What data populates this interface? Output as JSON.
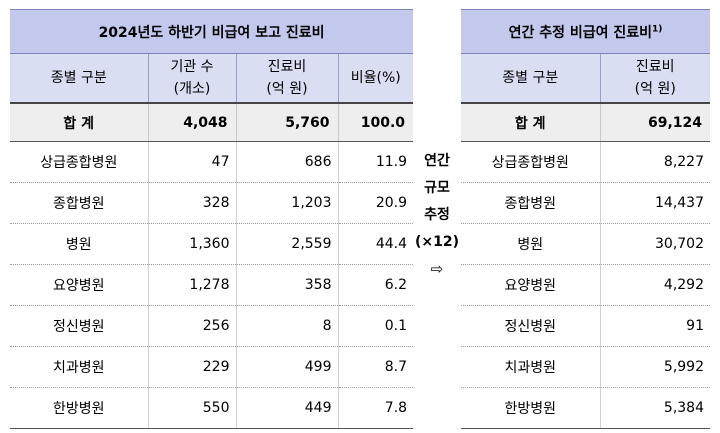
{
  "left_table": {
    "title": "2024년도 하반기 비급여 보고 진료비",
    "headers": {
      "category": "종별 구분",
      "institutions_line1": "기관 수",
      "institutions_line2": "(개소)",
      "cost_line1": "진료비",
      "cost_line2": "(억 원)",
      "ratio": "비율(%)"
    },
    "total": {
      "label": "합 계",
      "institutions": "4,048",
      "cost": "5,760",
      "ratio": "100.0"
    },
    "rows": [
      {
        "label": "상급종합병원",
        "institutions": "47",
        "cost": "686",
        "ratio": "11.9"
      },
      {
        "label": "종합병원",
        "institutions": "328",
        "cost": "1,203",
        "ratio": "20.9"
      },
      {
        "label": "병원",
        "institutions": "1,360",
        "cost": "2,559",
        "ratio": "44.4"
      },
      {
        "label": "요양병원",
        "institutions": "1,278",
        "cost": "358",
        "ratio": "6.2"
      },
      {
        "label": "정신병원",
        "institutions": "256",
        "cost": "8",
        "ratio": "0.1"
      },
      {
        "label": "치과병원",
        "institutions": "229",
        "cost": "499",
        "ratio": "8.7"
      },
      {
        "label": "한방병원",
        "institutions": "550",
        "cost": "449",
        "ratio": "7.8"
      }
    ]
  },
  "middle": {
    "line1": "연간",
    "line2": "규모",
    "line3": "추정",
    "line4": "(×12)",
    "arrow": "⇨"
  },
  "right_table": {
    "title": "연간 추정 비급여 진료비",
    "title_note": "1)",
    "headers": {
      "category": "종별 구분",
      "cost_line1": "진료비",
      "cost_line2": "(억 원)"
    },
    "total": {
      "label": "합 계",
      "cost": "69,124"
    },
    "rows": [
      {
        "label": "상급종합병원",
        "cost": "8,227"
      },
      {
        "label": "종합병원",
        "cost": "14,437"
      },
      {
        "label": "병원",
        "cost": "30,702"
      },
      {
        "label": "요양병원",
        "cost": "4,292"
      },
      {
        "label": "정신병원",
        "cost": "91"
      },
      {
        "label": "치과병원",
        "cost": "5,992"
      },
      {
        "label": "한방병원",
        "cost": "5,384"
      }
    ]
  }
}
